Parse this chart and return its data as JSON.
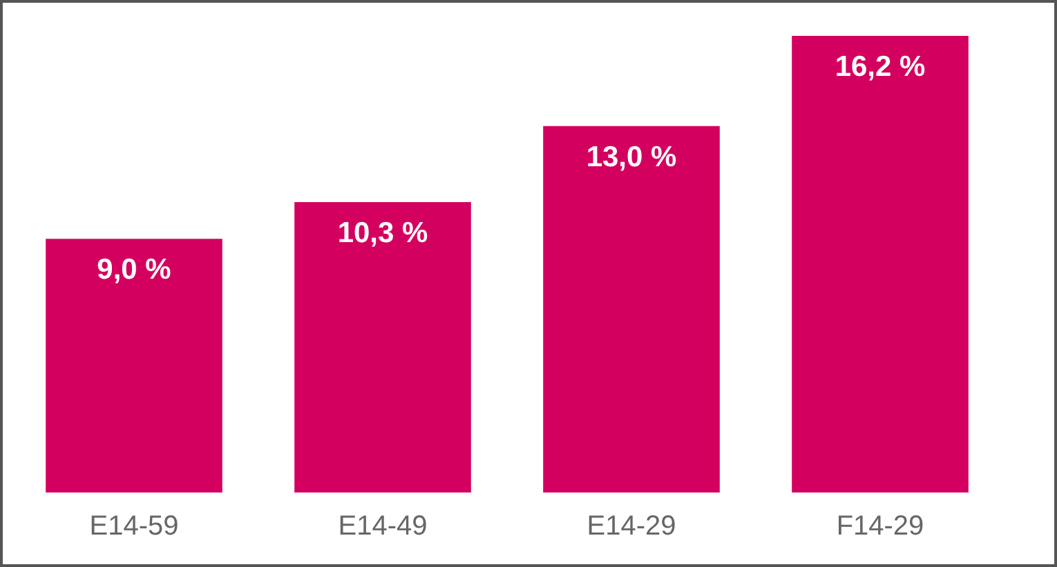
{
  "chart_data": {
    "type": "bar",
    "categories": [
      "E14-59",
      "E14-49",
      "E14-29",
      "F14-29"
    ],
    "values": [
      9.0,
      10.3,
      13.0,
      16.2
    ],
    "color": "#d4005f",
    "value_labels": [
      "9,0 %",
      "10,3 %",
      "13,0 %",
      "16,2 %"
    ]
  }
}
